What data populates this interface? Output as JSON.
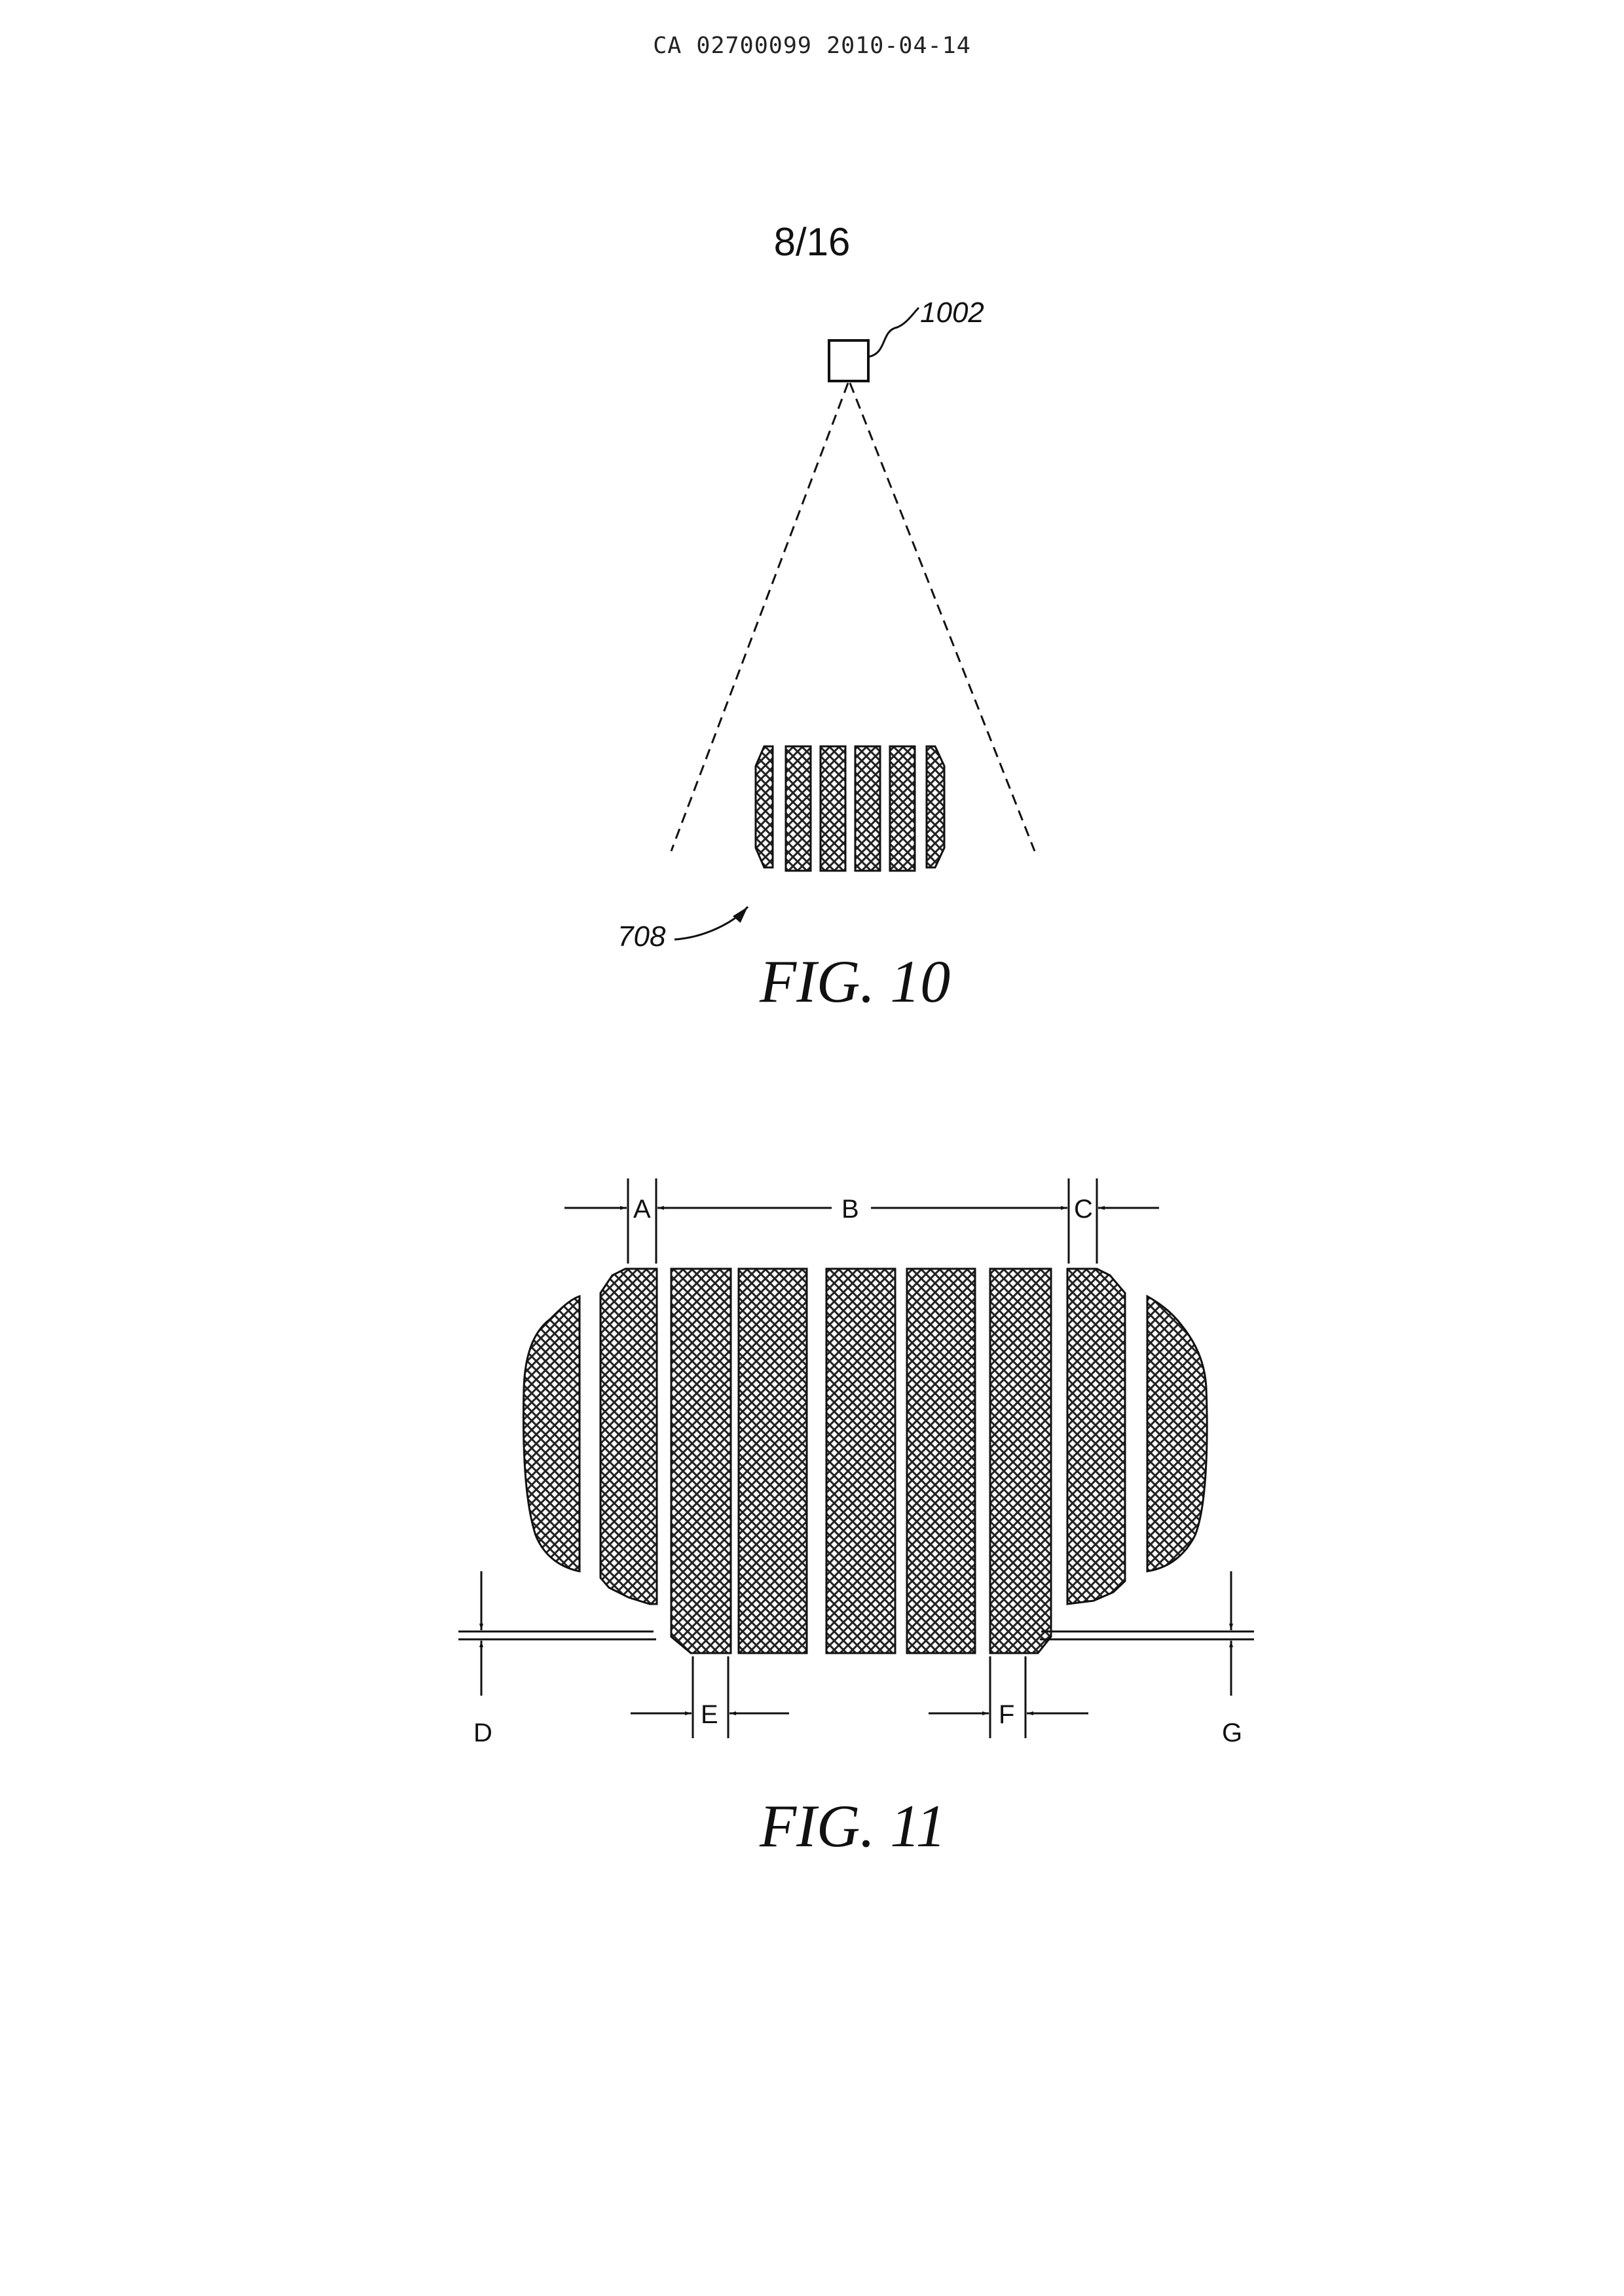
{
  "header": {
    "publication": "CA 02700099 2010-04-14"
  },
  "sheet": {
    "number": "8/16"
  },
  "figure10": {
    "caption": "FIG. 10",
    "refs": {
      "camera": "1002",
      "face": "708"
    }
  },
  "figure11": {
    "caption": "FIG. 11",
    "dimensions": {
      "a": "A",
      "b": "B",
      "c": "C",
      "d": "D",
      "e": "E",
      "f": "F",
      "g": "G"
    }
  }
}
